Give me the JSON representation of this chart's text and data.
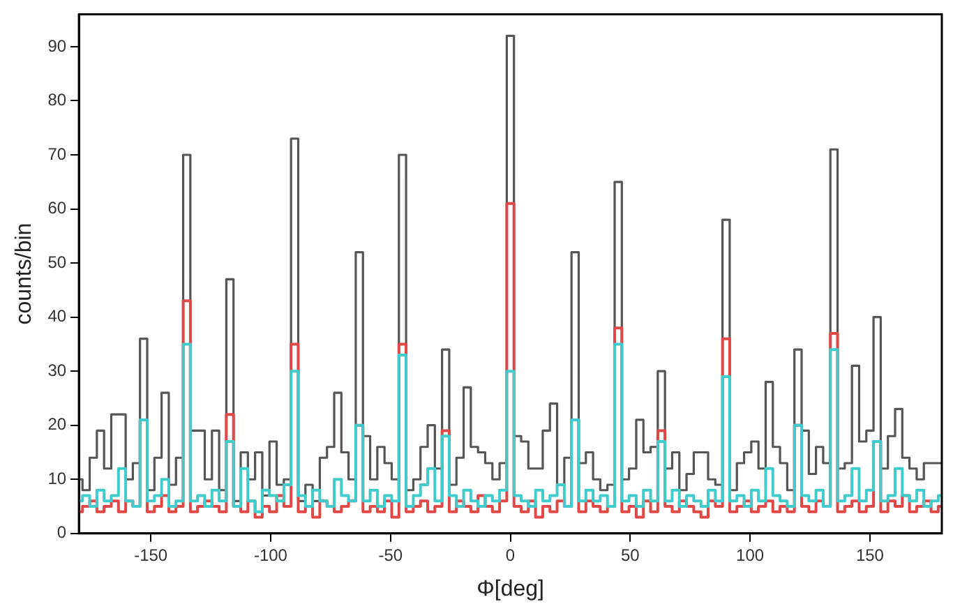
{
  "chart_data": {
    "type": "histogram",
    "xlabel": "Φ[deg]",
    "ylabel": "counts/bin",
    "bins": [
      -180,
      -178.5,
      -175.5,
      -172.5,
      -169.5,
      -166.5,
      -163.5,
      -160.5,
      -157.5,
      -154.5,
      -151.5,
      -148.5,
      -145.5,
      -142.5,
      -139.5,
      -136.5,
      -133.5,
      -130.5,
      -127.5,
      -124.5,
      -121.5,
      -118.5,
      -115.5,
      -112.5,
      -109.5,
      -106.5,
      -103.5,
      -100.5,
      -97.5,
      -94.5,
      -91.5,
      -88.5,
      -85.5,
      -82.5,
      -79.5,
      -76.5,
      -73.5,
      -70.5,
      -67.5,
      -64.5,
      -61.5,
      -58.5,
      -55.5,
      -52.5,
      -49.5,
      -46.5,
      -43.5,
      -40.5,
      -37.5,
      -34.5,
      -31.5,
      -28.5,
      -25.5,
      -22.5,
      -19.5,
      -16.5,
      -13.5,
      -10.5,
      -7.5,
      -4.5,
      -1.5,
      1.5,
      4.5,
      7.5,
      10.5,
      13.5,
      16.5,
      19.5,
      22.5,
      25.5,
      28.5,
      31.5,
      34.5,
      37.5,
      40.5,
      43.5,
      46.5,
      49.5,
      52.5,
      55.5,
      58.5,
      61.5,
      64.5,
      67.5,
      70.5,
      73.5,
      76.5,
      79.5,
      82.5,
      85.5,
      88.5,
      91.5,
      94.5,
      97.5,
      100.5,
      103.5,
      106.5,
      109.5,
      112.5,
      115.5,
      118.5,
      121.5,
      124.5,
      127.5,
      130.5,
      133.5,
      136.5,
      139.5,
      142.5,
      145.5,
      148.5,
      151.5,
      154.5,
      157.5,
      160.5,
      163.5,
      166.5,
      169.5,
      172.5,
      175.5,
      178.5,
      180
    ],
    "series": [
      {
        "color": "#555555",
        "values": [
          10,
          8,
          14,
          19,
          12,
          22,
          22,
          10,
          13,
          36,
          8,
          14,
          26,
          9,
          14,
          70,
          19,
          19,
          10,
          19,
          8,
          47,
          6,
          15,
          10,
          15,
          7,
          17,
          9,
          10,
          73,
          6,
          9,
          6,
          14,
          16,
          26,
          15,
          10,
          52,
          18,
          10,
          16,
          13,
          10,
          70,
          8,
          10,
          16,
          20,
          12,
          34,
          9,
          14,
          27,
          16,
          15,
          13,
          10,
          13,
          92,
          18,
          17,
          12,
          12,
          19,
          24,
          9,
          14,
          52,
          13,
          15,
          10,
          8,
          9,
          65,
          10,
          12,
          21,
          15,
          16,
          30,
          12,
          15,
          8,
          11,
          15,
          15,
          10,
          9,
          58,
          8,
          13,
          15,
          17,
          12,
          28,
          16,
          13,
          8,
          34,
          19,
          11,
          16,
          13,
          71,
          12,
          13,
          31,
          17,
          19,
          40,
          12,
          18,
          23,
          14,
          12,
          10,
          13,
          13,
          13
        ]
      },
      {
        "color": "#e04848",
        "values": [
          4,
          5,
          6,
          4,
          5,
          6,
          4,
          6,
          5,
          21,
          4,
          5,
          7,
          4,
          5,
          43,
          4,
          5,
          6,
          5,
          4,
          22,
          5,
          4,
          6,
          3,
          5,
          4,
          7,
          5,
          35,
          4,
          5,
          3,
          6,
          5,
          4,
          5,
          6,
          20,
          4,
          5,
          4,
          6,
          3,
          35,
          4,
          5,
          6,
          4,
          5,
          19,
          4,
          6,
          5,
          4,
          7,
          5,
          4,
          6,
          61,
          5,
          4,
          6,
          3,
          5,
          4,
          6,
          5,
          21,
          4,
          6,
          5,
          4,
          5,
          38,
          4,
          5,
          3,
          6,
          4,
          19,
          5,
          4,
          6,
          5,
          4,
          3,
          6,
          5,
          36,
          4,
          5,
          6,
          4,
          5,
          6,
          4,
          5,
          4,
          20,
          5,
          4,
          6,
          5,
          37,
          4,
          5,
          6,
          4,
          5,
          17,
          4,
          6,
          5,
          7,
          4,
          5,
          6,
          4,
          5
        ]
      },
      {
        "color": "#40cccc",
        "values": [
          6,
          7,
          5,
          8,
          6,
          7,
          12,
          6,
          5,
          21,
          6,
          7,
          10,
          5,
          6,
          35,
          6,
          7,
          5,
          8,
          6,
          17,
          5,
          12,
          6,
          4,
          8,
          7,
          6,
          9,
          30,
          7,
          5,
          8,
          6,
          5,
          10,
          7,
          6,
          20,
          6,
          8,
          5,
          7,
          6,
          33,
          5,
          7,
          9,
          12,
          6,
          18,
          7,
          5,
          8,
          6,
          5,
          7,
          6,
          8,
          30,
          7,
          6,
          5,
          8,
          6,
          7,
          9,
          5,
          21,
          6,
          8,
          6,
          7,
          5,
          35,
          6,
          7,
          5,
          8,
          6,
          17,
          6,
          8,
          5,
          7,
          6,
          5,
          8,
          6,
          29,
          6,
          7,
          5,
          8,
          6,
          12,
          7,
          6,
          5,
          20,
          7,
          6,
          8,
          5,
          34,
          6,
          7,
          12,
          6,
          8,
          17,
          6,
          7,
          12,
          7,
          6,
          8,
          5,
          6,
          7
        ]
      }
    ],
    "xlim": [
      -180,
      180
    ],
    "xticks": [
      -150,
      -100,
      -50,
      0,
      50,
      100,
      150
    ],
    "ylim": [
      0,
      96
    ],
    "yticks": [
      0,
      10,
      20,
      30,
      40,
      50,
      60,
      70,
      80,
      90
    ]
  }
}
